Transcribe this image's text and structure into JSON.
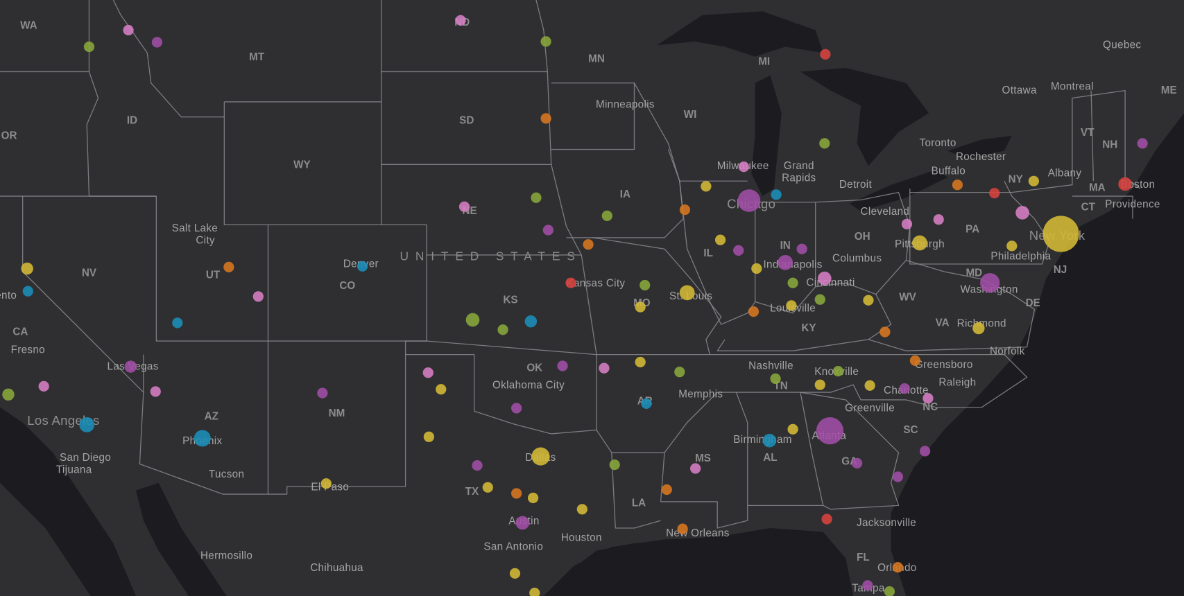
{
  "map": {
    "country_label": "UNITED STATES",
    "palette": {
      "pink": "#d77fc4",
      "purple": "#a24fa6",
      "green": "#8aa83a",
      "orange": "#d9771f",
      "yellow": "#d6bb35",
      "blue": "#1b8fba",
      "red": "#d9433f"
    },
    "states": [
      "WA",
      "MT",
      "ND",
      "MN",
      "MI",
      "ID",
      "SD",
      "WI",
      "OR",
      "WY",
      "IA",
      "NE",
      "NV",
      "UT",
      "CO",
      "KS",
      "MO",
      "IL",
      "IN",
      "OH",
      "PA",
      "NY",
      "VT",
      "NH",
      "ME",
      "MA",
      "CT",
      "NJ",
      "MD",
      "DE",
      "WV",
      "VA",
      "KY",
      "TN",
      "NC",
      "SC",
      "GA",
      "AL",
      "MS",
      "AR",
      "LA",
      "OK",
      "TX",
      "NM",
      "AZ",
      "CA",
      "FL"
    ],
    "cities": [
      "Quebec",
      "Ottawa",
      "Montreal",
      "Toronto",
      "Rochester",
      "Buffalo",
      "Albany",
      "Boston",
      "Providence",
      "New York",
      "Philadelphia",
      "Washington",
      "Richmond",
      "Norfolk",
      "Raleigh",
      "Greensboro",
      "Charlotte",
      "Greenville",
      "Jacksonville",
      "Orlando",
      "Tampa",
      "Atlanta",
      "Birmingham",
      "Knoxville",
      "Nashville",
      "Memphis",
      "New Orleans",
      "Houston",
      "Austin",
      "San Antonio",
      "Dallas",
      "El Paso",
      "Oklahoma City",
      "Kansas City",
      "St. Louis",
      "Louisville",
      "Cincinnati",
      "Indianapolis",
      "Columbus",
      "Cleveland",
      "Pittsburgh",
      "Detroit",
      "Chicago",
      "Milwaukee",
      "Grand",
      "Rapids",
      "Minneapolis",
      "Denver",
      "Salt Lake",
      "City",
      "Las Vegas",
      "Los Angeles",
      "San Diego",
      "Tijuana",
      "Phoenix",
      "Tucson",
      "Fresno",
      "ento",
      "Hermosillo",
      "Chihuahua"
    ]
  }
}
